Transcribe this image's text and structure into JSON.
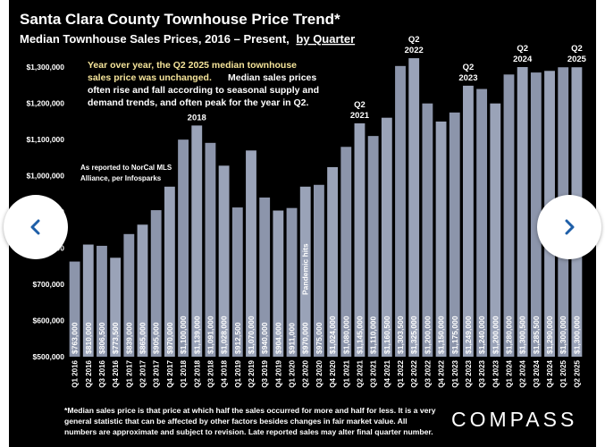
{
  "nav": {
    "prev_icon": "chevron-left-icon",
    "next_icon": "chevron-right-icon",
    "accent": "#1f5fa8"
  },
  "colors": {
    "background": "#000000",
    "bar": "#8c95ab",
    "bar_alt": "#9aa3b8",
    "text": "#ffffff",
    "note": "#f5e49a"
  },
  "chart_data": {
    "type": "bar",
    "title": "Santa Clara County Townhouse Price Trend*",
    "subtitle_prefix": "Median Townhouse Sales Prices, 2016 – Present,",
    "subtitle_suffix": "by Quarter",
    "note_yellow_lines": [
      "Year over year, the Q2 2025 median townhouse",
      "sales price was unchanged."
    ],
    "note_white_lines": [
      "Median sales prices",
      "often rise and fall according to seasonal supply and",
      "demand trends, and often peak for the year in Q2."
    ],
    "source_lines": [
      "As reported to NorCal MLS",
      "Alliance, per Infosparks"
    ],
    "ylim": [
      500000,
      1350000
    ],
    "yticks": [
      500000,
      600000,
      700000,
      800000,
      900000,
      1000000,
      1100000,
      1200000,
      1300000
    ],
    "ytick_labels": [
      "$500,000",
      "$600,000",
      "$700,000",
      "$800,000",
      "$900,000",
      "$1,000,000",
      "$1,100,000",
      "$1,200,000",
      "$1,300,000"
    ],
    "categories": [
      "Q1 2016",
      "Q2 2016",
      "Q3 2016",
      "Q4 2016",
      "Q1 2017",
      "Q2 2017",
      "Q3 2017",
      "Q4 2017",
      "Q1 2018",
      "Q2 2018",
      "Q3 2018",
      "Q4 2018",
      "Q1 2019",
      "Q2 2019",
      "Q3 2019",
      "Q4 2019",
      "Q1 2020",
      "Q2 2020",
      "Q3 2020",
      "Q4 2020",
      "Q1 2021",
      "Q2 2021",
      "Q3 2021",
      "Q4 2021",
      "Q1 2022",
      "Q2 2022",
      "Q3 2022",
      "Q4 2022",
      "Q1 2023",
      "Q2 2023",
      "Q3 2023",
      "Q4 2023",
      "Q1 2024",
      "Q2 2024",
      "Q3 2024",
      "Q4 2024",
      "Q1 2025",
      "Q2 2025"
    ],
    "values": [
      763000,
      810000,
      806500,
      773500,
      839000,
      865000,
      905000,
      970000,
      1100000,
      1139000,
      1091000,
      1028000,
      912500,
      1070000,
      940000,
      904000,
      911000,
      970000,
      975000,
      1024000,
      1080000,
      1145000,
      1110000,
      1160500,
      1303500,
      1325000,
      1200000,
      1150000,
      1175000,
      1249000,
      1240000,
      1200000,
      1280000,
      1300500,
      1285500,
      1290000,
      1300000,
      1300000
    ],
    "bar_labels": [
      "$763,000",
      "$810,000",
      "$806,500",
      "$773,500",
      "$839,000",
      "$865,000",
      "$905,000",
      "$970,000",
      "$1,100,000",
      "$1,139,000",
      "$1,091,000",
      "$1,028,000",
      "$912,500",
      "$1,070,000",
      "$940,000",
      "$904,000",
      "$911,000",
      "$970,000",
      "$975,000",
      "$1,024,000",
      "$1,080,000",
      "$1,145,000",
      "$1,110,000",
      "$1,160,500",
      "$1,303,500",
      "$1,325,000",
      "$1,200,000",
      "$1,150,000",
      "$1,175,000",
      "$1,249,000",
      "$1,240,000",
      "$1,200,000",
      "$1,280,000",
      "$1,300,500",
      "$1,285,500",
      "$1,290,000",
      "$1,300,000",
      "$1,300,000"
    ],
    "peak_annotations": [
      {
        "index": 9,
        "lines": [
          "Q2",
          "2018"
        ]
      },
      {
        "index": 21,
        "lines": [
          "Q2",
          "2021"
        ]
      },
      {
        "index": 25,
        "lines": [
          "Q2",
          "2022"
        ]
      },
      {
        "index": 29,
        "lines": [
          "Q2",
          "2023"
        ]
      },
      {
        "index": 33,
        "lines": [
          "Q2",
          "2024"
        ]
      },
      {
        "index": 37,
        "lines": [
          "Q2",
          "2025"
        ]
      }
    ],
    "pandemic_label": "Pandemic hits",
    "pandemic_index": 17,
    "footnote_lines": [
      "*Median sales price is that price at which half the sales occurred for more and half for less. It is a very",
      "general statistic that can be affected by other factors besides changes in fair market value. All",
      "numbers are approximate and subject to revision. Late reported sales may alter final quarter number."
    ],
    "brand": "COMPASS"
  }
}
